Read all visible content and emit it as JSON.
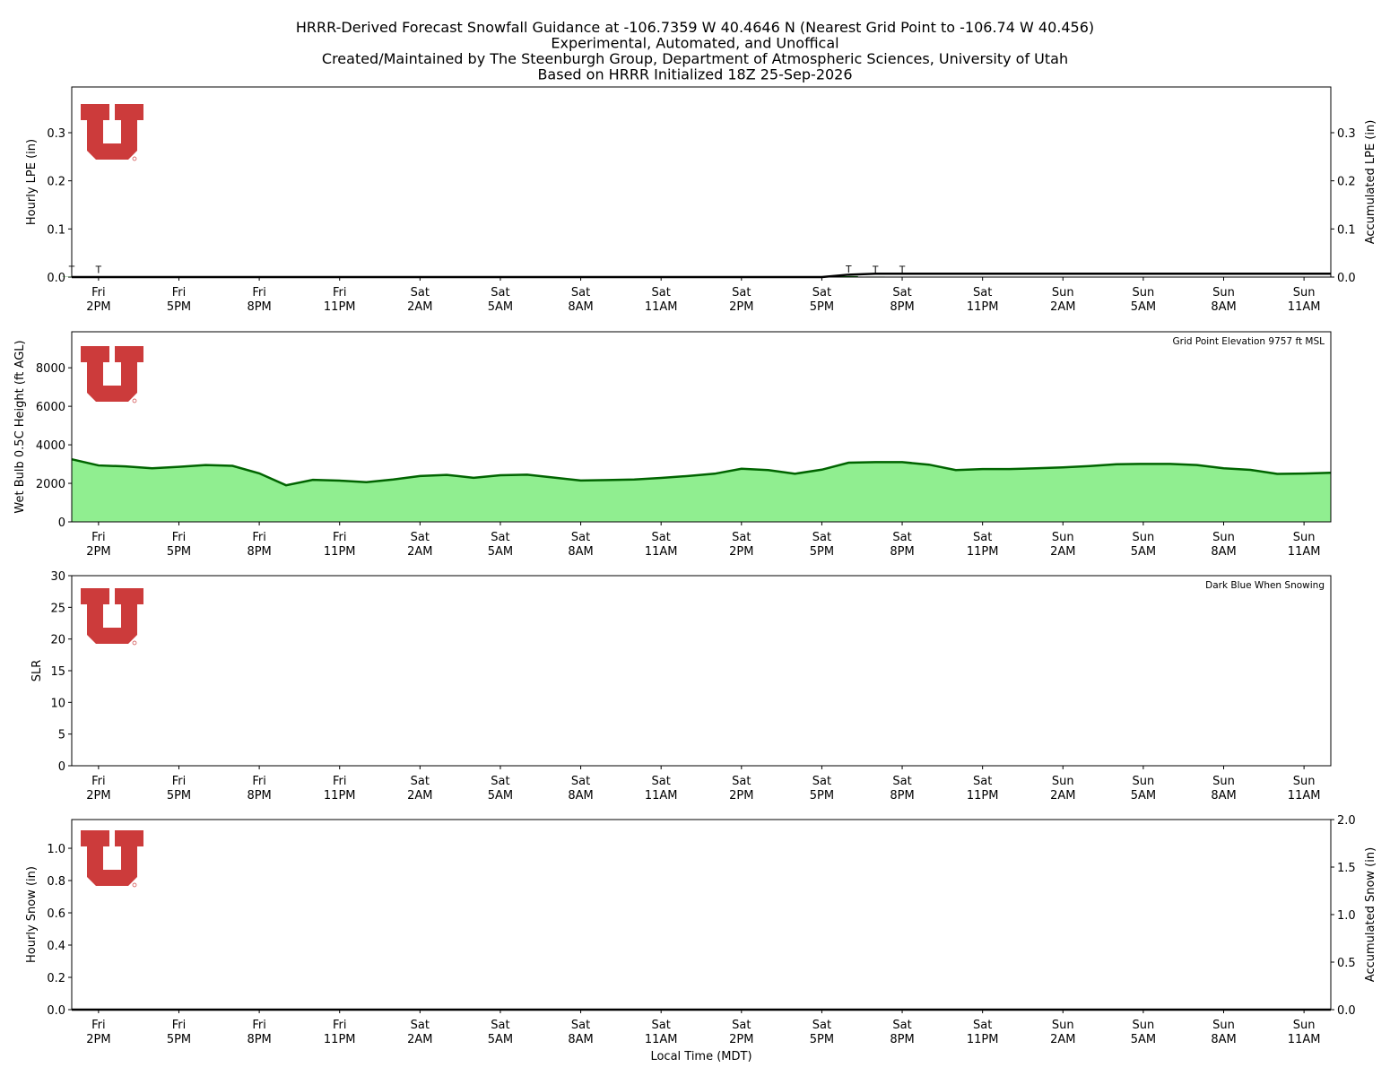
{
  "chart_data": [
    {
      "type": "bar",
      "title": [
        "HRRR-Derived Forecast Snowfall Guidance at -106.7359 W 40.4646 N (Nearest Grid Point to -106.74 W 40.456)",
        "Experimental, Automated, and Unoffical",
        "Created/Maintained by The Steenburgh Group, Department of Atmospheric Sciences, University of Utah",
        "Based on HRRR Initialized 18Z 25-Sep-2026"
      ],
      "ylabel": "Hourly LPE (in)",
      "y2label": "Accumulated LPE (in)",
      "categories": [
        null,
        [
          "Fri",
          "2PM"
        ],
        null,
        null,
        [
          "Fri",
          "5PM"
        ],
        null,
        null,
        [
          "Fri",
          "8PM"
        ],
        null,
        null,
        [
          "Fri",
          "11PM"
        ],
        null,
        null,
        [
          "Sat",
          "2AM"
        ],
        null,
        null,
        [
          "Sat",
          "5AM"
        ],
        null,
        null,
        [
          "Sat",
          "8AM"
        ],
        null,
        null,
        [
          "Sat",
          "11AM"
        ],
        null,
        null,
        [
          "Sat",
          "2PM"
        ],
        null,
        null,
        [
          "Sat",
          "5PM"
        ],
        null,
        null,
        [
          "Sat",
          "8PM"
        ],
        null,
        null,
        [
          "Sat",
          "11PM"
        ],
        null,
        null,
        [
          "Sun",
          "2AM"
        ],
        null,
        null,
        [
          "Sun",
          "5AM"
        ],
        null,
        null,
        [
          "Sun",
          "8AM"
        ],
        null,
        null,
        [
          "Sun",
          "11AM"
        ],
        null
      ],
      "ylim": [
        0,
        0.395
      ],
      "yticks": [
        {
          "value": 0,
          "label": "0.0"
        },
        0.1,
        0.2,
        0.3
      ],
      "y2lim": [
        0,
        0.395
      ],
      "y2ticks": [
        {
          "value": 0,
          "label": "0.0"
        },
        0.1,
        0.2,
        0.3
      ],
      "series": [
        {
          "name": "Hourly LPE",
          "type": "bar",
          "color": "#006400",
          "values": [
            0.0005,
            0.0005,
            0,
            0,
            0,
            0,
            0,
            0,
            0,
            0,
            0,
            0,
            0,
            0,
            0,
            0,
            0,
            0,
            0,
            0,
            0,
            0,
            0,
            0,
            0,
            0,
            0,
            0,
            0,
            0.002,
            0.001,
            0.0005,
            0,
            0,
            0,
            0,
            0,
            0,
            0,
            0,
            0,
            0,
            0,
            0,
            0,
            0,
            0,
            0
          ],
          "value_labels": [
            "T",
            "T",
            null,
            null,
            null,
            null,
            null,
            null,
            null,
            null,
            null,
            null,
            null,
            null,
            null,
            null,
            null,
            null,
            null,
            null,
            null,
            null,
            null,
            null,
            null,
            null,
            null,
            null,
            null,
            "T",
            "T",
            "T",
            null,
            null,
            null,
            null,
            null,
            null,
            null,
            null,
            null,
            null,
            null,
            null,
            null,
            null,
            null,
            null
          ]
        },
        {
          "name": "Accumulated LPE",
          "type": "line",
          "axis": "y2",
          "color": "#000000",
          "values": [
            0,
            0,
            0,
            0,
            0,
            0,
            0,
            0,
            0,
            0,
            0,
            0,
            0,
            0,
            0,
            0,
            0,
            0,
            0,
            0,
            0,
            0,
            0,
            0,
            0,
            0,
            0,
            0,
            0,
            0.005,
            0.007,
            0.007,
            0.007,
            0.007,
            0.007,
            0.007,
            0.007,
            0.007,
            0.007,
            0.007,
            0.007,
            0.007,
            0.007,
            0.007,
            0.007,
            0.007,
            0.007,
            0.007
          ]
        }
      ]
    },
    {
      "type": "area",
      "ylabel": "Wet Bulb 0.5C Height (ft AGL)",
      "annotation": "Grid Point Elevation 9757 ft MSL",
      "categories": [
        null,
        [
          "Fri",
          "2PM"
        ],
        null,
        null,
        [
          "Fri",
          "5PM"
        ],
        null,
        null,
        [
          "Fri",
          "8PM"
        ],
        null,
        null,
        [
          "Fri",
          "11PM"
        ],
        null,
        null,
        [
          "Sat",
          "2AM"
        ],
        null,
        null,
        [
          "Sat",
          "5AM"
        ],
        null,
        null,
        [
          "Sat",
          "8AM"
        ],
        null,
        null,
        [
          "Sat",
          "11AM"
        ],
        null,
        null,
        [
          "Sat",
          "2PM"
        ],
        null,
        null,
        [
          "Sat",
          "5PM"
        ],
        null,
        null,
        [
          "Sat",
          "8PM"
        ],
        null,
        null,
        [
          "Sat",
          "11PM"
        ],
        null,
        null,
        [
          "Sun",
          "2AM"
        ],
        null,
        null,
        [
          "Sun",
          "5AM"
        ],
        null,
        null,
        [
          "Sun",
          "8AM"
        ],
        null,
        null,
        [
          "Sun",
          "11AM"
        ],
        null
      ],
      "ylim": [
        0,
        9870
      ],
      "yticks": [
        0,
        2000,
        4000,
        6000,
        8000
      ],
      "series": [
        {
          "name": "Wet Bulb 0.5C Height",
          "type": "area",
          "color": "#006400",
          "fill": "#90ee90",
          "values": [
            3250,
            2930,
            2880,
            2780,
            2860,
            2950,
            2910,
            2520,
            1900,
            2180,
            2140,
            2060,
            2200,
            2380,
            2440,
            2290,
            2420,
            2450,
            2300,
            2150,
            2170,
            2200,
            2280,
            2380,
            2500,
            2760,
            2690,
            2500,
            2710,
            3070,
            3100,
            3100,
            2970,
            2690,
            2740,
            2740,
            2780,
            2830,
            2900,
            2990,
            3010,
            3010,
            2950,
            2780,
            2700,
            2490,
            2510,
            2550
          ]
        }
      ]
    },
    {
      "type": "bar",
      "ylabel": "SLR",
      "annotation": "Dark Blue When Snowing",
      "categories": [
        null,
        [
          "Fri",
          "2PM"
        ],
        null,
        null,
        [
          "Fri",
          "5PM"
        ],
        null,
        null,
        [
          "Fri",
          "8PM"
        ],
        null,
        null,
        [
          "Fri",
          "11PM"
        ],
        null,
        null,
        [
          "Sat",
          "2AM"
        ],
        null,
        null,
        [
          "Sat",
          "5AM"
        ],
        null,
        null,
        [
          "Sat",
          "8AM"
        ],
        null,
        null,
        [
          "Sat",
          "11AM"
        ],
        null,
        null,
        [
          "Sat",
          "2PM"
        ],
        null,
        null,
        [
          "Sat",
          "5PM"
        ],
        null,
        null,
        [
          "Sat",
          "8PM"
        ],
        null,
        null,
        [
          "Sat",
          "11PM"
        ],
        null,
        null,
        [
          "Sun",
          "2AM"
        ],
        null,
        null,
        [
          "Sun",
          "5AM"
        ],
        null,
        null,
        [
          "Sun",
          "8AM"
        ],
        null,
        null,
        [
          "Sun",
          "11AM"
        ],
        null
      ],
      "ylim": [
        0,
        30
      ],
      "yticks": [
        0,
        5,
        10,
        15,
        20,
        25,
        30
      ],
      "series": []
    },
    {
      "type": "bar",
      "ylabel": "Hourly Snow (in)",
      "y2label": "Accumulated Snow (in)",
      "xlabel": "Local Time (MDT)",
      "categories": [
        null,
        [
          "Fri",
          "2PM"
        ],
        null,
        null,
        [
          "Fri",
          "5PM"
        ],
        null,
        null,
        [
          "Fri",
          "8PM"
        ],
        null,
        null,
        [
          "Fri",
          "11PM"
        ],
        null,
        null,
        [
          "Sat",
          "2AM"
        ],
        null,
        null,
        [
          "Sat",
          "5AM"
        ],
        null,
        null,
        [
          "Sat",
          "8AM"
        ],
        null,
        null,
        [
          "Sat",
          "11AM"
        ],
        null,
        null,
        [
          "Sat",
          "2PM"
        ],
        null,
        null,
        [
          "Sat",
          "5PM"
        ],
        null,
        null,
        [
          "Sat",
          "8PM"
        ],
        null,
        null,
        [
          "Sat",
          "11PM"
        ],
        null,
        null,
        [
          "Sun",
          "2AM"
        ],
        null,
        null,
        [
          "Sun",
          "5AM"
        ],
        null,
        null,
        [
          "Sun",
          "8AM"
        ],
        null,
        null,
        [
          "Sun",
          "11AM"
        ],
        null
      ],
      "ylim": [
        0,
        1.178
      ],
      "yticks": [
        {
          "value": 0,
          "label": "0.0"
        },
        0.2,
        0.4,
        0.6,
        0.8,
        {
          "value": 1,
          "label": "1.0"
        }
      ],
      "y2lim": [
        0,
        2
      ],
      "y2ticks": [
        {
          "value": 0,
          "label": "0.0"
        },
        0.5,
        {
          "value": 1,
          "label": "1.0"
        },
        1.5,
        {
          "value": 2,
          "label": "2.0"
        }
      ],
      "series": [
        {
          "name": "Hourly Snow",
          "type": "bar",
          "color": "#00008b",
          "values": [
            0,
            0,
            0,
            0,
            0,
            0,
            0,
            0,
            0,
            0,
            0,
            0,
            0,
            0,
            0,
            0,
            0,
            0,
            0,
            0,
            0,
            0,
            0,
            0,
            0,
            0,
            0,
            0,
            0,
            0,
            0,
            0,
            0,
            0,
            0,
            0,
            0,
            0,
            0,
            0,
            0,
            0,
            0,
            0,
            0,
            0,
            0,
            0
          ]
        },
        {
          "name": "Accumulated Snow",
          "type": "line",
          "axis": "y2",
          "color": "#000000",
          "values": [
            0,
            0,
            0,
            0,
            0,
            0,
            0,
            0,
            0,
            0,
            0,
            0,
            0,
            0,
            0,
            0,
            0,
            0,
            0,
            0,
            0,
            0,
            0,
            0,
            0,
            0,
            0,
            0,
            0,
            0,
            0,
            0,
            0,
            0,
            0,
            0,
            0,
            0,
            0,
            0,
            0,
            0,
            0,
            0,
            0,
            0,
            0,
            0
          ]
        }
      ]
    }
  ]
}
